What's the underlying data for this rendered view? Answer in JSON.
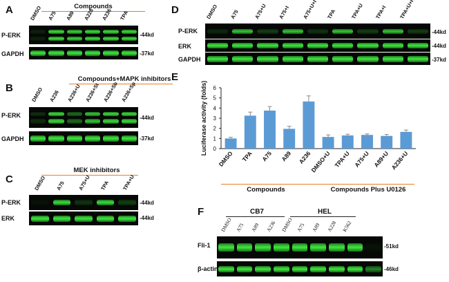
{
  "panelA": {
    "letter": "A",
    "group": "Compounds",
    "lanes": [
      "DMSO",
      "A75",
      "A89",
      "A228",
      "A236",
      "TPA"
    ],
    "rows": [
      {
        "label": "P-ERK",
        "kd": "-44kd"
      },
      {
        "label": "GAPDH",
        "kd": "-37kd"
      }
    ]
  },
  "panelB": {
    "letter": "B",
    "group": "Compounds+MAPK inhibitors",
    "lanes": [
      "DMSO",
      "A236",
      "A236+U",
      "A236+St",
      "A236+Sb",
      "A236+Sp"
    ],
    "rows": [
      {
        "label": "P-ERK",
        "kd": "-44kd"
      },
      {
        "label": "GAPDH",
        "kd": "-37kd"
      }
    ]
  },
  "panelC": {
    "letter": "C",
    "group": "MEK inhibitors",
    "lanes": [
      "DMSO",
      "A75",
      "A75+U",
      "TPA",
      "TPA+U"
    ],
    "rows": [
      {
        "label": "P-ERK",
        "kd": "-44kd"
      },
      {
        "label": "ERK",
        "kd": "-44kd"
      }
    ]
  },
  "panelD": {
    "letter": "D",
    "lanes": [
      "DMSO",
      "A75",
      "A75+U",
      "A75+I",
      "A75+U+I",
      "TPA",
      "TPA+U",
      "TPA+I",
      "TPA+U+I"
    ],
    "rows": [
      {
        "label": "P-ERK",
        "kd": "-44kd"
      },
      {
        "label": "ERK",
        "kd": "-44kd"
      },
      {
        "label": "GAPDH",
        "kd": "-37kd"
      }
    ]
  },
  "panelE": {
    "letter": "E",
    "group1": "Compounds",
    "group2": "Compounds Plus U0126"
  },
  "panelF": {
    "letter": "F",
    "group1": "CB7",
    "group2": "HEL",
    "lanes": [
      "DMSO",
      "A75",
      "A89",
      "A236",
      "DMSO",
      "A75",
      "A89",
      "A228",
      "K562"
    ],
    "rows": [
      {
        "label": "Fli-1",
        "kd": "-51kd"
      },
      {
        "label": "β-actin",
        "kd": "-46kd"
      }
    ]
  },
  "chart_data": {
    "type": "bar",
    "categories": [
      "DMSO",
      "TPA",
      "A75",
      "A89",
      "A236",
      "DMSO+U",
      "TPA+U",
      "A75+U",
      "A89+U",
      "A236+U"
    ],
    "values": [
      1.0,
      3.25,
      3.75,
      1.95,
      4.65,
      1.15,
      1.3,
      1.35,
      1.25,
      1.65
    ],
    "errors": [
      0.12,
      0.35,
      0.4,
      0.25,
      0.55,
      0.2,
      0.12,
      0.1,
      0.15,
      0.18
    ],
    "ylabel": "Luciferase activity (folds)",
    "yticks": [
      "0",
      "1",
      "2",
      "3",
      "4",
      "5",
      "6"
    ],
    "ylim": [
      0,
      6
    ],
    "bar_color": "#5b9bd5",
    "grid": false
  },
  "colors": {
    "accent_line": "#e67e22",
    "band_green": "#3fe33f"
  }
}
